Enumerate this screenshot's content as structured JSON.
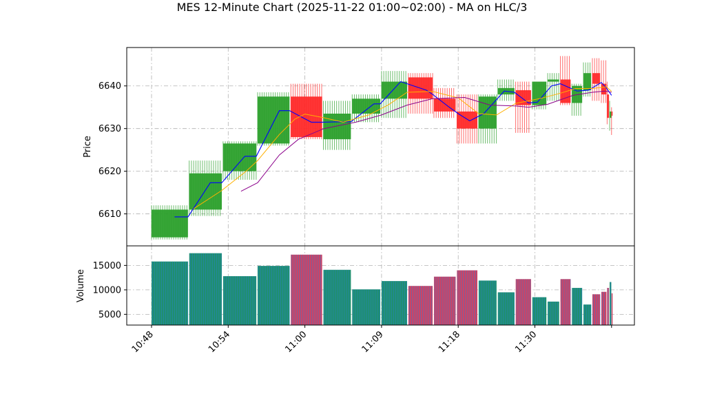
{
  "chart_data": {
    "type": "candlestick",
    "title": "MES 12-Minute Chart (2025-11-22 01:00~02:00) - MA on HLC/3",
    "price_panel": {
      "ylabel": "Price",
      "ylim": [
        6602.5,
        6649
      ],
      "yticks": [
        6610,
        6620,
        6630,
        6640
      ],
      "grid": true
    },
    "volume_panel": {
      "ylabel": "Volume",
      "ylim": [
        2800,
        19000
      ],
      "yticks": [
        5000,
        10000,
        15000
      ],
      "yticklabels": [
        "5000",
        "10000",
        "15000"
      ],
      "grid": true
    },
    "xticks": [
      {
        "label": "10:48",
        "x": 0
      },
      {
        "label": "10:54",
        "x": 6
      },
      {
        "label": "11:00",
        "x": 12
      },
      {
        "label": "11:09",
        "x": 18
      },
      {
        "label": "11:18",
        "x": 24
      },
      {
        "label": "11:30",
        "x": 30
      },
      {
        "label": "",
        "x": 36
      }
    ],
    "colors": {
      "up": "#2ca02c",
      "down": "#ff2a2a",
      "ma_fast": "#0000ff",
      "ma_mid": "#ffb000",
      "ma_slow": "#8b008b",
      "volume_up": "#1f8f6f",
      "volume_down": "#cc4466"
    },
    "bars": [
      {
        "x0": 0,
        "x1": 2.85,
        "o": 6604.5,
        "h": 6612,
        "l": 6604,
        "c": 6611,
        "v": 15800
      },
      {
        "x0": 2.95,
        "x1": 5.5,
        "o": 6611,
        "h": 6622.5,
        "l": 6609.5,
        "c": 6619.5,
        "v": 17500
      },
      {
        "x0": 5.6,
        "x1": 8.2,
        "o": 6620,
        "h": 6627,
        "l": 6618,
        "c": 6626.5,
        "v": 12800
      },
      {
        "x0": 8.3,
        "x1": 10.8,
        "o": 6626.5,
        "h": 6638.5,
        "l": 6626,
        "c": 6637.5,
        "v": 14900
      },
      {
        "x0": 10.9,
        "x1": 13.35,
        "o": 6637.5,
        "h": 6640.5,
        "l": 6627.5,
        "c": 6628,
        "v": 17200
      },
      {
        "x0": 13.45,
        "x1": 15.6,
        "o": 6627.5,
        "h": 6636.5,
        "l": 6625,
        "c": 6633.5,
        "v": 14100
      },
      {
        "x0": 15.7,
        "x1": 17.9,
        "o": 6633.5,
        "h": 6638,
        "l": 6631.5,
        "c": 6637,
        "v": 10100
      },
      {
        "x0": 18,
        "x1": 20,
        "o": 6637,
        "h": 6643.5,
        "l": 6632.5,
        "c": 6641,
        "v": 11800
      },
      {
        "x0": 20.1,
        "x1": 22,
        "o": 6642,
        "h": 6643,
        "l": 6633.5,
        "c": 6637,
        "v": 10800
      },
      {
        "x0": 22.1,
        "x1": 23.8,
        "o": 6637,
        "h": 6639.5,
        "l": 6632.5,
        "c": 6634,
        "v": 12700
      },
      {
        "x0": 23.9,
        "x1": 25.5,
        "o": 6634,
        "h": 6638,
        "l": 6626.5,
        "c": 6630,
        "v": 14000
      },
      {
        "x0": 25.6,
        "x1": 27,
        "o": 6630,
        "h": 6638,
        "l": 6626.5,
        "c": 6637.5,
        "v": 11900
      },
      {
        "x0": 27.1,
        "x1": 28.4,
        "o": 6638,
        "h": 6641.5,
        "l": 6636.5,
        "c": 6639.5,
        "v": 9500
      },
      {
        "x0": 28.5,
        "x1": 29.7,
        "o": 6639,
        "h": 6641,
        "l": 6629,
        "c": 6635.5,
        "v": 12200
      },
      {
        "x0": 29.8,
        "x1": 30.9,
        "o": 6635.5,
        "h": 6641,
        "l": 6634.5,
        "c": 6641,
        "v": 8500
      },
      {
        "x0": 31,
        "x1": 31.9,
        "o": 6641,
        "h": 6643,
        "l": 6636.5,
        "c": 6641.5,
        "v": 7600
      },
      {
        "x0": 32,
        "x1": 32.8,
        "o": 6641.5,
        "h": 6647,
        "l": 6635.5,
        "c": 6636,
        "v": 12200
      },
      {
        "x0": 32.9,
        "x1": 33.7,
        "o": 6636,
        "h": 6640.5,
        "l": 6633,
        "c": 6640,
        "v": 10400
      },
      {
        "x0": 33.8,
        "x1": 34.4,
        "o": 6639,
        "h": 6645.5,
        "l": 6637.5,
        "c": 6643,
        "v": 7000
      },
      {
        "x0": 34.5,
        "x1": 35.1,
        "o": 6643,
        "h": 6646.5,
        "l": 6636.5,
        "c": 6640.5,
        "v": 9100
      },
      {
        "x0": 35.2,
        "x1": 35.6,
        "o": 6640.5,
        "h": 6646,
        "l": 6636,
        "c": 6638,
        "v": 9600
      },
      {
        "x0": 35.65,
        "x1": 35.8,
        "o": 6638,
        "h": 6641,
        "l": 6631,
        "c": 6632.5,
        "v": 10400
      },
      {
        "x0": 35.85,
        "x1": 35.98,
        "o": 6632.5,
        "h": 6636.5,
        "l": 6629.5,
        "c": 6634,
        "v": 11600
      },
      {
        "x0": 36.0,
        "x1": 36.08,
        "o": 6634,
        "h": 6635,
        "l": 6628.5,
        "c": 6633,
        "v": 9300
      }
    ],
    "ma_fast": [
      [
        1.8,
        6609.3
      ],
      [
        2.85,
        6609.3
      ],
      [
        4.6,
        6617.3
      ],
      [
        5.5,
        6617.3
      ],
      [
        7.3,
        6623.5
      ],
      [
        8.2,
        6623.5
      ],
      [
        10,
        6634.2
      ],
      [
        10.8,
        6634.2
      ],
      [
        12.5,
        6631.5
      ],
      [
        13.4,
        6631.5
      ],
      [
        14.8,
        6631.6
      ],
      [
        15.6,
        6631.6
      ],
      [
        17.4,
        6635.8
      ],
      [
        17.9,
        6635.8
      ],
      [
        19.5,
        6641
      ],
      [
        20,
        6640.5
      ],
      [
        21.5,
        6639
      ],
      [
        22,
        6638
      ],
      [
        23.3,
        6635
      ],
      [
        24,
        6633.5
      ],
      [
        24.9,
        6631.8
      ],
      [
        26,
        6633.5
      ],
      [
        27.6,
        6638.8
      ],
      [
        28.4,
        6638.5
      ],
      [
        29.5,
        6636
      ],
      [
        30.2,
        6636.2
      ],
      [
        31.3,
        6640
      ],
      [
        32,
        6640.5
      ],
      [
        33.3,
        6638.8
      ],
      [
        34.2,
        6639
      ],
      [
        35.2,
        6640.8
      ],
      [
        35.6,
        6639.5
      ],
      [
        36.0,
        6637.8
      ]
    ],
    "ma_mid": [
      [
        3.3,
        6611.2
      ],
      [
        5.5,
        6615.5
      ],
      [
        7.4,
        6620
      ],
      [
        8.3,
        6622.5
      ],
      [
        10,
        6628.6
      ],
      [
        11.2,
        6632.2
      ],
      [
        12,
        6633.4
      ],
      [
        13.4,
        6632.6
      ],
      [
        15,
        6631.5
      ],
      [
        17,
        6633.2
      ],
      [
        18.5,
        6635.5
      ],
      [
        20,
        6638.5
      ],
      [
        22,
        6638.7
      ],
      [
        24,
        6637.2
      ],
      [
        25.6,
        6633.5
      ],
      [
        27,
        6633.2
      ],
      [
        28.5,
        6635.9
      ],
      [
        30.5,
        6637.1
      ],
      [
        32,
        6638.3
      ],
      [
        33.2,
        6639.4
      ],
      [
        34.5,
        6639.4
      ],
      [
        35.6,
        6639.8
      ],
      [
        36.0,
        6638.7
      ]
    ],
    "ma_slow": [
      [
        7,
        6615.3
      ],
      [
        8.3,
        6617.3
      ],
      [
        10,
        6623.8
      ],
      [
        11.5,
        6627.5
      ],
      [
        13.5,
        6630
      ],
      [
        16,
        6631.5
      ],
      [
        18,
        6633.2
      ],
      [
        20,
        6635.5
      ],
      [
        22,
        6637
      ],
      [
        24.5,
        6637.3
      ],
      [
        26.5,
        6635.5
      ],
      [
        28.5,
        6635.3
      ],
      [
        29.5,
        6635
      ],
      [
        31,
        6635.7
      ],
      [
        33,
        6637.8
      ],
      [
        34.5,
        6638.5
      ],
      [
        35.5,
        6638.8
      ],
      [
        36.0,
        6638.5
      ]
    ]
  }
}
